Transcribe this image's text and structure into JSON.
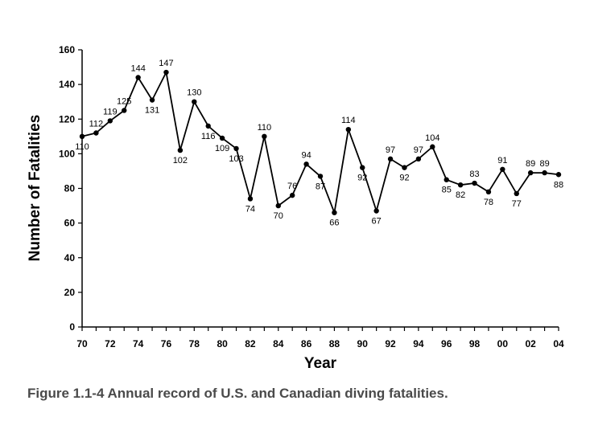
{
  "caption": "Figure 1.1-4 Annual record of U.S. and Canadian diving fatalities.",
  "chart_data": {
    "type": "line",
    "title": "",
    "xlabel": "Year",
    "ylabel": "Number of Fatalities",
    "ylim": [
      0,
      160
    ],
    "yticks": [
      0,
      20,
      40,
      60,
      80,
      100,
      120,
      140,
      160
    ],
    "xtick_labels": [
      "70",
      "72",
      "74",
      "76",
      "78",
      "80",
      "82",
      "84",
      "86",
      "88",
      "90",
      "92",
      "94",
      "96",
      "98",
      "00",
      "02",
      "04"
    ],
    "x": [
      "70",
      "71",
      "72",
      "73",
      "74",
      "75",
      "76",
      "77",
      "78",
      "79",
      "80",
      "81",
      "82",
      "83",
      "84",
      "85",
      "86",
      "87",
      "88",
      "89",
      "90",
      "91",
      "92",
      "93",
      "94",
      "95",
      "96",
      "97",
      "98",
      "99",
      "00",
      "01",
      "02",
      "03",
      "04"
    ],
    "series": [
      {
        "values": [
          110,
          112,
          119,
          125,
          144,
          131,
          147,
          102,
          130,
          116,
          109,
          103,
          74,
          110,
          70,
          76,
          94,
          87,
          66,
          114,
          92,
          67,
          97,
          92,
          97,
          104,
          85,
          82,
          83,
          78,
          91,
          77,
          89,
          89,
          88
        ]
      }
    ],
    "grid": false,
    "legend": "none",
    "line_color": "#000000"
  }
}
